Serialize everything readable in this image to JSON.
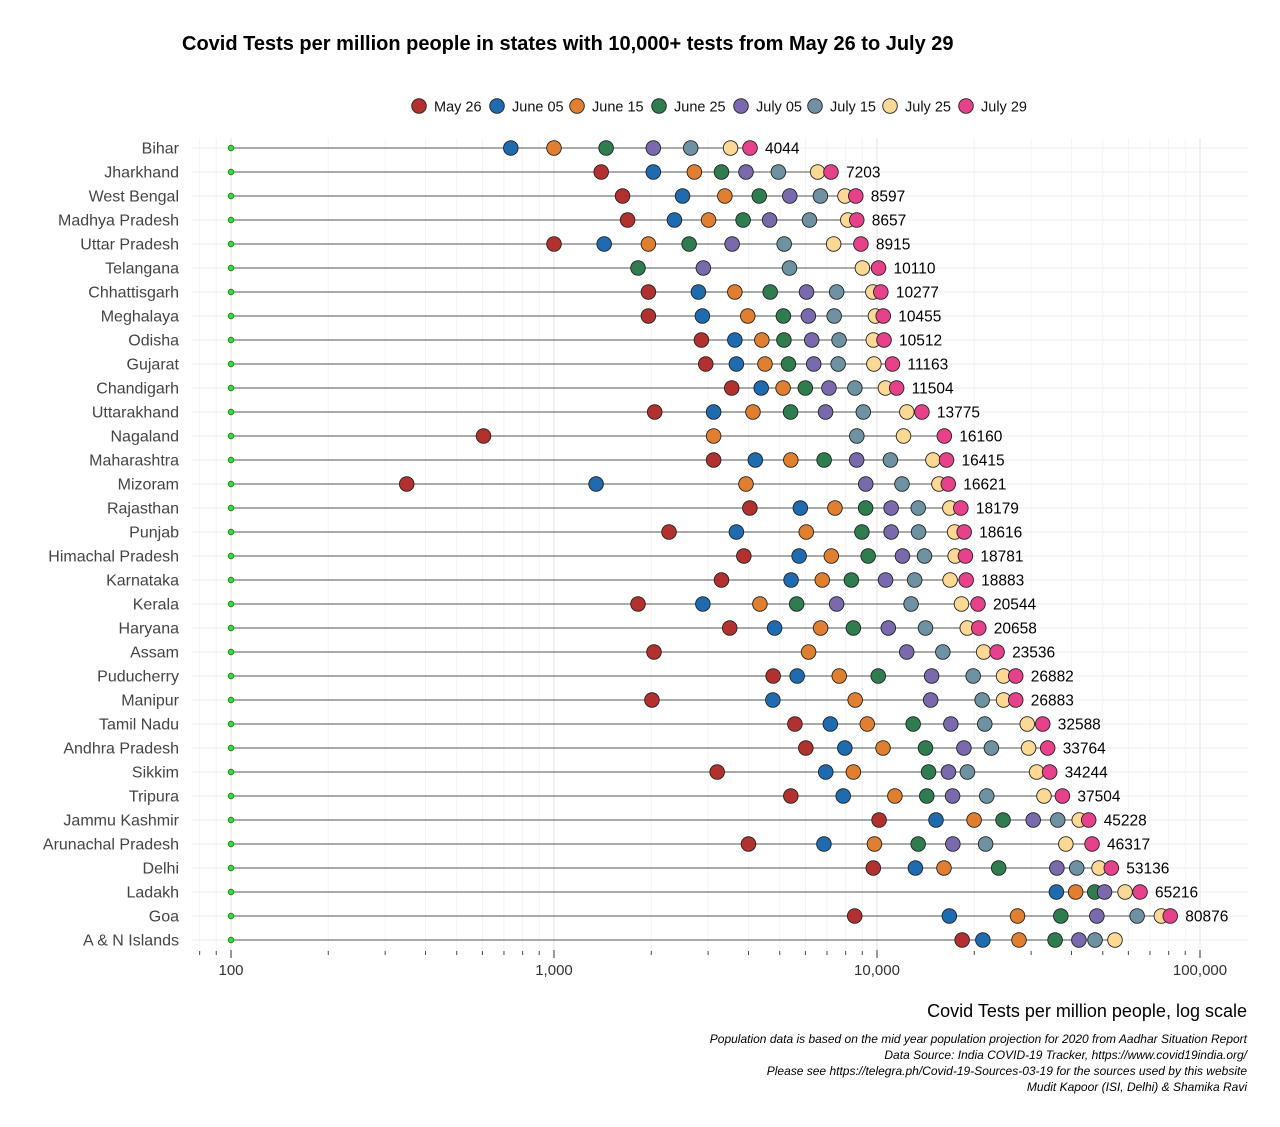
{
  "chart_data": {
    "type": "scatter",
    "title": "Covid Tests per million people in states with 10,000+ tests from May 26 to July 29",
    "xlabel": "Covid Tests per million people, log scale",
    "xscale": "log",
    "xlim": [
      80,
      140000
    ],
    "ticks": [
      {
        "value": 100,
        "label": "100"
      },
      {
        "value": 1000,
        "label": "1,000"
      },
      {
        "value": 10000,
        "label": "10,000"
      },
      {
        "value": 100000,
        "label": "100,000"
      }
    ],
    "baseline": 100,
    "legend_position": "top",
    "series": [
      {
        "name": "May 26",
        "color": "#b2312f"
      },
      {
        "name": "June 05",
        "color": "#1f6bb0"
      },
      {
        "name": "June 15",
        "color": "#e07f2f"
      },
      {
        "name": "June 25",
        "color": "#2f7d4f"
      },
      {
        "name": "July 05",
        "color": "#7a6aad"
      },
      {
        "name": "July 15",
        "color": "#6f92a3"
      },
      {
        "name": "July 25",
        "color": "#fbd893"
      },
      {
        "name": "July 29",
        "color": "#e8418c"
      }
    ],
    "rows": [
      {
        "state": "Bihar",
        "label": "4044",
        "values": [
          null,
          735,
          1000,
          1450,
          2030,
          2650,
          3520,
          4044
        ]
      },
      {
        "state": "Jharkhand",
        "label": "7203",
        "values": [
          1400,
          2030,
          2720,
          3300,
          3930,
          4950,
          6550,
          7203
        ]
      },
      {
        "state": "West Bengal",
        "label": "8597",
        "values": [
          1630,
          2500,
          3380,
          4320,
          5370,
          6680,
          7960,
          8597
        ]
      },
      {
        "state": "Madhya Pradesh",
        "label": "8657",
        "values": [
          1690,
          2360,
          3010,
          3850,
          4650,
          6180,
          8120,
          8657
        ]
      },
      {
        "state": "Uttar Pradesh",
        "label": "8915",
        "values": [
          1000,
          1430,
          1960,
          2620,
          3560,
          5160,
          7340,
          8915
        ]
      },
      {
        "state": "Telangana",
        "label": "10110",
        "values": [
          null,
          null,
          null,
          1820,
          2900,
          5360,
          9010,
          10110
        ]
      },
      {
        "state": "Chhattisgarh",
        "label": "10277",
        "values": [
          1960,
          2800,
          3630,
          4670,
          6050,
          7500,
          9710,
          10277
        ]
      },
      {
        "state": "Meghalaya",
        "label": "10455",
        "values": [
          1960,
          2880,
          3980,
          5130,
          6130,
          7370,
          9890,
          10455
        ]
      },
      {
        "state": "Odisha",
        "label": "10512",
        "values": [
          2860,
          3630,
          4400,
          5150,
          6280,
          7630,
          9740,
          10512
        ]
      },
      {
        "state": "Gujarat",
        "label": "11163",
        "values": [
          2950,
          3670,
          4500,
          5320,
          6370,
          7580,
          9780,
          11163
        ]
      },
      {
        "state": "Chandigarh",
        "label": "11504",
        "values": [
          3550,
          4380,
          5120,
          6000,
          7100,
          8540,
          10620,
          11504
        ]
      },
      {
        "state": "Uttarakhand",
        "label": "13775",
        "values": [
          2050,
          3120,
          4130,
          5400,
          6930,
          9070,
          12370,
          13775
        ]
      },
      {
        "state": "Nagaland",
        "label": "16160",
        "values": [
          605,
          null,
          3120,
          null,
          null,
          8660,
          12080,
          16160
        ]
      },
      {
        "state": "Maharashtra",
        "label": "16415",
        "values": [
          3120,
          4200,
          5410,
          6860,
          8650,
          11000,
          14900,
          16415
        ]
      },
      {
        "state": "Mizoram",
        "label": "16621",
        "values": [
          350,
          1350,
          3930,
          null,
          9230,
          11950,
          15550,
          16621
        ]
      },
      {
        "state": "Rajasthan",
        "label": "18179",
        "values": [
          4040,
          5790,
          7410,
          9220,
          11060,
          13420,
          16810,
          18179
        ]
      },
      {
        "state": "Punjab",
        "label": "18616",
        "values": [
          2270,
          3670,
          6040,
          8980,
          11060,
          13450,
          17390,
          18616
        ]
      },
      {
        "state": "Himachal Pradesh",
        "label": "18781",
        "values": [
          3870,
          5740,
          7220,
          9390,
          11990,
          14030,
          17460,
          18781
        ]
      },
      {
        "state": "Karnataka",
        "label": "18883",
        "values": [
          3300,
          5420,
          6770,
          8330,
          10630,
          13080,
          16840,
          18883
        ]
      },
      {
        "state": "Kerala",
        "label": "20544",
        "values": [
          1820,
          2890,
          4340,
          5640,
          7500,
          12750,
          18260,
          20544
        ]
      },
      {
        "state": "Haryana",
        "label": "20658",
        "values": [
          3500,
          4820,
          6690,
          8450,
          10840,
          14130,
          19030,
          20658
        ]
      },
      {
        "state": "Assam",
        "label": "23536",
        "values": [
          2040,
          null,
          6140,
          null,
          12360,
          15990,
          21390,
          23536
        ]
      },
      {
        "state": "Puducherry",
        "label": "26882",
        "values": [
          4770,
          5660,
          7640,
          10090,
          14760,
          19850,
          24650,
          26882
        ]
      },
      {
        "state": "Manipur",
        "label": "26883",
        "values": [
          2010,
          4760,
          8560,
          null,
          14660,
          21160,
          24650,
          26883
        ]
      },
      {
        "state": "Tamil Nadu",
        "label": "32588",
        "values": [
          5570,
          7170,
          9330,
          12940,
          16930,
          21560,
          29180,
          32588
        ]
      },
      {
        "state": "Andhra Pradesh",
        "label": "33764",
        "values": [
          6020,
          7950,
          10440,
          14130,
          18580,
          22600,
          29470,
          33764
        ]
      },
      {
        "state": "Sikkim",
        "label": "34244",
        "values": [
          3200,
          6940,
          8450,
          14440,
          16640,
          19050,
          31200,
          34244
        ]
      },
      {
        "state": "Tripura",
        "label": "37504",
        "values": [
          5410,
          7860,
          11360,
          14260,
          17140,
          21870,
          32880,
          37504
        ]
      },
      {
        "state": "Jammu Kashmir",
        "label": "45228",
        "values": [
          10150,
          15230,
          19980,
          24560,
          30450,
          36270,
          42280,
          45228
        ]
      },
      {
        "state": "Arunachal Pradesh",
        "label": "46317",
        "values": [
          4000,
          6850,
          9820,
          13410,
          17170,
          21690,
          38430,
          46317
        ]
      },
      {
        "state": "Delhi",
        "label": "53136",
        "values": [
          9740,
          13150,
          16120,
          23810,
          36050,
          41530,
          48690,
          53136
        ]
      },
      {
        "state": "Ladakh",
        "label": "65216",
        "values": [
          null,
          35930,
          41210,
          47210,
          50640,
          null,
          58620,
          65216
        ]
      },
      {
        "state": "Goa",
        "label": "80876",
        "values": [
          8530,
          16750,
          27230,
          37070,
          47940,
          63870,
          75920,
          80876
        ]
      },
      {
        "state": "A & N Islands",
        "label": "",
        "values": [
          18350,
          21270,
          27520,
          35590,
          42180,
          47300,
          54550,
          null
        ]
      }
    ]
  },
  "caption": [
    "Population data is based on the mid year population projection for 2020 from Aadhar Situation Report",
    "Data Source: India COVID-19 Tracker, https://www.covid19india.org/",
    "Please see https://telegra.ph/Covid-19-Sources-03-19 for the sources used by this website",
    "Mudit Kapoor (ISI, Delhi) & Shamika Ravi"
  ]
}
